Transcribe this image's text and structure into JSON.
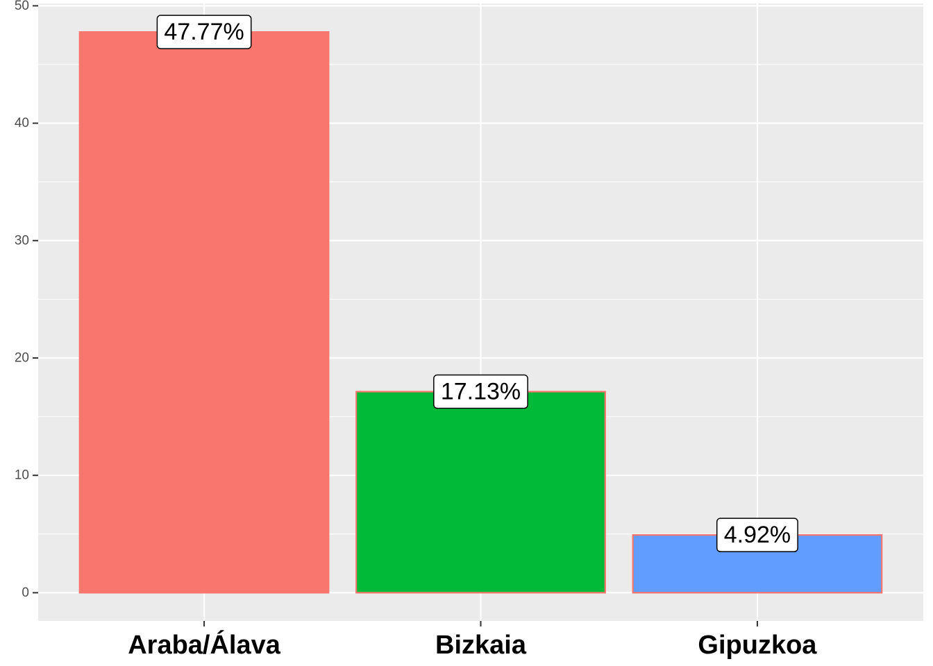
{
  "chart_data": {
    "type": "bar",
    "categories": [
      "Araba/Álava",
      "Bizkaia",
      "Gipuzkoa"
    ],
    "values": [
      47.77,
      17.13,
      4.92
    ],
    "labels": [
      "47.77%",
      "17.13%",
      "4.92%"
    ],
    "colors": [
      "#F8766D",
      "#00BA38",
      "#619CFF"
    ],
    "bar_outline_color": "#F8766D",
    "panel_background": "#EBEBEB",
    "ylim": [
      -2.4,
      50.2
    ],
    "yticks": [
      0,
      10,
      20,
      30,
      40,
      50
    ],
    "grid": true,
    "legend": "none"
  }
}
